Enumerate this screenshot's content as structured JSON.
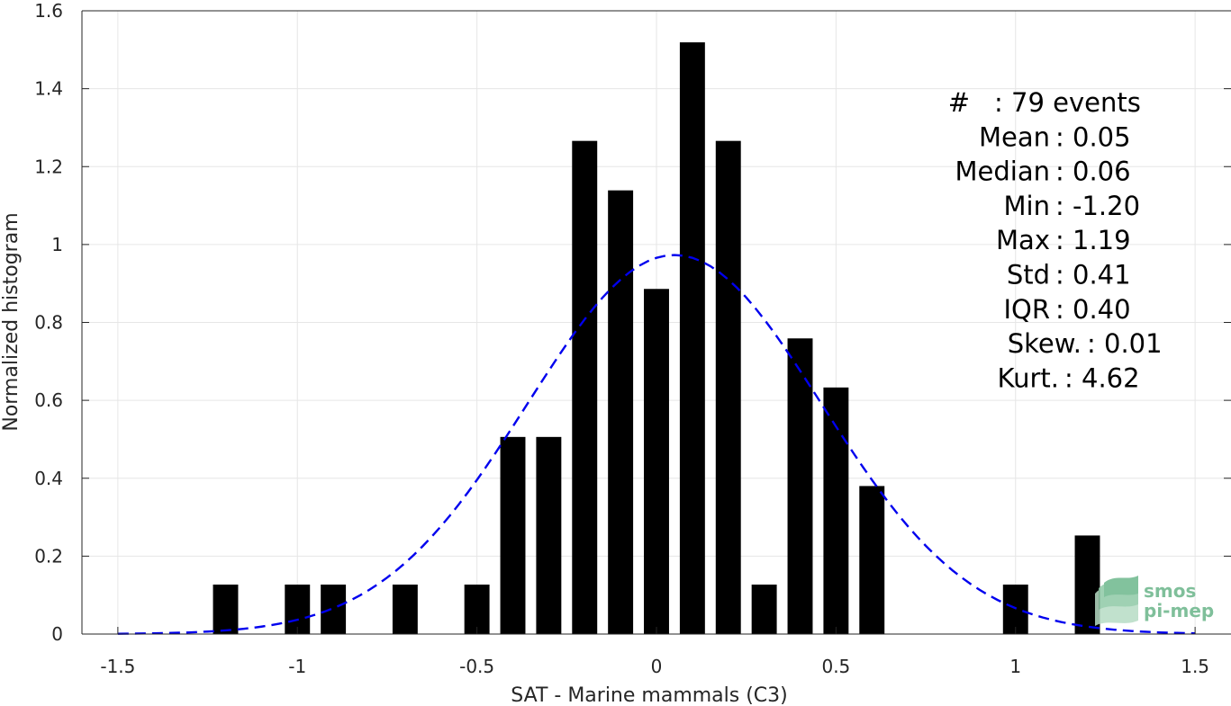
{
  "chart_data": {
    "type": "bar",
    "xlabel": "SAT - Marine mammals (C3)",
    "ylabel": "Normalized histogram",
    "xlim": [
      -1.6,
      1.6
    ],
    "ylim": [
      0,
      1.6
    ],
    "xticks": [
      -1.5,
      -1,
      -0.5,
      0,
      0.5,
      1,
      1.5
    ],
    "xtick_labels": [
      "-1.5",
      "-1",
      "-0.5",
      "0",
      "0.5",
      "1",
      "1.5"
    ],
    "yticks": [
      0,
      0.2,
      0.4,
      0.6,
      0.8,
      1,
      1.2,
      1.4,
      1.6
    ],
    "ytick_labels": [
      "0",
      "0.2",
      "0.4",
      "0.6",
      "0.8",
      "1",
      "1.2",
      "1.4",
      "1.6"
    ],
    "grid": true,
    "bar_color": "#000000",
    "bar_width": 0.07,
    "bars": [
      {
        "x": -1.2,
        "value": 0.127
      },
      {
        "x": -1.0,
        "value": 0.127
      },
      {
        "x": -0.9,
        "value": 0.127
      },
      {
        "x": -0.7,
        "value": 0.127
      },
      {
        "x": -0.5,
        "value": 0.127
      },
      {
        "x": -0.4,
        "value": 0.506
      },
      {
        "x": -0.3,
        "value": 0.506
      },
      {
        "x": -0.2,
        "value": 1.266
      },
      {
        "x": -0.1,
        "value": 1.139
      },
      {
        "x": 0.0,
        "value": 0.886
      },
      {
        "x": 0.1,
        "value": 1.519
      },
      {
        "x": 0.2,
        "value": 1.266
      },
      {
        "x": 0.3,
        "value": 0.127
      },
      {
        "x": 0.4,
        "value": 0.759
      },
      {
        "x": 0.5,
        "value": 0.633
      },
      {
        "x": 0.6,
        "value": 0.38
      },
      {
        "x": 1.0,
        "value": 0.127
      },
      {
        "x": 1.2,
        "value": 0.253
      }
    ],
    "fit_curve": {
      "style": "dashed",
      "color": "#0000ee",
      "mean": 0.05,
      "std": 0.41,
      "x_range": [
        -1.5,
        1.5
      ]
    }
  },
  "stats": [
    {
      "label": "#",
      "value": ": 79 events"
    },
    {
      "label": "Mean",
      "value": ": 0.05"
    },
    {
      "label": "Median",
      "value": ": 0.06"
    },
    {
      "label": "Min",
      "value": ": -1.20"
    },
    {
      "label": "Max",
      "value": ": 1.19"
    },
    {
      "label": "Std",
      "value": ": 0.41"
    },
    {
      "label": "IQR",
      "value": ": 0.40"
    },
    {
      "label": "Skew.",
      "value": ": 0.01"
    },
    {
      "label": "Kurt.",
      "value": ": 4.62"
    }
  ],
  "logo": {
    "line1": "smos",
    "line2": "pi-mep",
    "color": "#7fbf9a"
  }
}
